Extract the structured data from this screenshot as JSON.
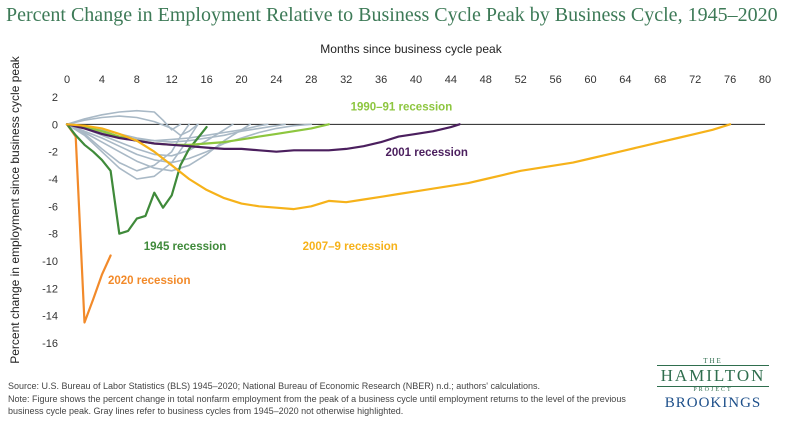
{
  "title": "Percent Change in Employment Relative to Business Cycle Peak by Business Cycle, 1945–2020",
  "source": "Source: U.S. Bureau of Labor Statistics (BLS) 1945–2020; National Bureau of Economic Research (NBER) n.d.; authors' calculations.",
  "note": "Note: Figure shows the percent change in total nonfarm employment from the peak of a business cycle until employment returns to the level of the previous business cycle peak. Gray lines refer to business cycles from 1945–2020 not otherwise highlighted.",
  "logo": {
    "the": "THE",
    "hamilton": "HAMILTON",
    "project": "PROJECT",
    "brookings": "BROOKINGS"
  },
  "chart_data": {
    "type": "line",
    "xlabel": "Months since business cycle peak",
    "ylabel": "Percent change in employment since business cycle peak",
    "xlim": [
      0,
      80
    ],
    "ylim": [
      -16,
      2
    ],
    "xticks": [
      0,
      4,
      8,
      12,
      16,
      20,
      24,
      28,
      32,
      36,
      40,
      44,
      48,
      52,
      56,
      60,
      64,
      68,
      72,
      76,
      80
    ],
    "yticks": [
      2,
      0,
      -2,
      -4,
      -6,
      -8,
      -10,
      -12,
      -14,
      -16
    ],
    "x_axis_position": "top",
    "zero_line": true,
    "series": [
      {
        "name": "2020 recession",
        "color": "#f28a2a",
        "highlight": true,
        "x": [
          0,
          1,
          2,
          3,
          4,
          5
        ],
        "y": [
          0,
          -0.9,
          -14.5,
          -12.8,
          -11.0,
          -9.6
        ]
      },
      {
        "name": "1945 recession",
        "color": "#3f8a3a",
        "highlight": true,
        "x": [
          0,
          1,
          2,
          3,
          4,
          5,
          6,
          7,
          8,
          9,
          10,
          11,
          12,
          13,
          14,
          15,
          16
        ],
        "y": [
          0,
          -0.8,
          -1.5,
          -2.0,
          -2.6,
          -3.4,
          -8.0,
          -7.8,
          -6.9,
          -6.7,
          -5.0,
          -6.1,
          -5.2,
          -3.0,
          -1.8,
          -1.0,
          -0.2
        ]
      },
      {
        "name": "1990–91 recession",
        "color": "#8dc63f",
        "highlight": true,
        "x": [
          0,
          2,
          4,
          6,
          8,
          10,
          12,
          14,
          16,
          18,
          20,
          22,
          24,
          26,
          28,
          30
        ],
        "y": [
          0,
          -0.2,
          -0.5,
          -0.9,
          -1.2,
          -1.4,
          -1.5,
          -1.5,
          -1.4,
          -1.3,
          -1.1,
          -0.9,
          -0.7,
          -0.5,
          -0.3,
          0
        ]
      },
      {
        "name": "2001 recession",
        "color": "#4b1f5e",
        "highlight": true,
        "x": [
          0,
          2,
          4,
          6,
          8,
          10,
          12,
          14,
          16,
          18,
          20,
          22,
          24,
          26,
          28,
          30,
          32,
          34,
          36,
          38,
          40,
          42,
          44,
          45
        ],
        "y": [
          0,
          -0.3,
          -0.7,
          -1.0,
          -1.2,
          -1.4,
          -1.5,
          -1.6,
          -1.7,
          -1.8,
          -1.8,
          -1.9,
          -2.0,
          -1.9,
          -1.9,
          -1.9,
          -1.8,
          -1.6,
          -1.3,
          -0.9,
          -0.7,
          -0.5,
          -0.2,
          0
        ]
      },
      {
        "name": "2007–9 recession",
        "color": "#f6b21a",
        "highlight": true,
        "x": [
          0,
          2,
          4,
          6,
          8,
          10,
          12,
          14,
          16,
          18,
          20,
          22,
          24,
          26,
          28,
          30,
          32,
          34,
          36,
          38,
          40,
          42,
          44,
          46,
          48,
          50,
          52,
          54,
          56,
          58,
          60,
          62,
          64,
          66,
          68,
          70,
          72,
          74,
          76
        ],
        "y": [
          0,
          -0.1,
          -0.3,
          -0.7,
          -1.2,
          -2.0,
          -3.0,
          -4.0,
          -4.8,
          -5.4,
          -5.8,
          -6.0,
          -6.1,
          -6.2,
          -6.0,
          -5.6,
          -5.7,
          -5.5,
          -5.3,
          -5.1,
          -4.9,
          -4.7,
          -4.5,
          -4.3,
          -4.0,
          -3.7,
          -3.4,
          -3.2,
          -3.0,
          -2.8,
          -2.5,
          -2.2,
          -1.9,
          -1.6,
          -1.3,
          -1.0,
          -0.7,
          -0.4,
          0
        ]
      },
      {
        "name": "",
        "color": "#a9b9c6",
        "x": [
          0,
          2,
          4,
          6,
          8,
          10,
          11,
          12,
          13
        ],
        "y": [
          0,
          0.4,
          0.7,
          0.9,
          1.0,
          0.9,
          0.3,
          -0.4,
          0
        ]
      },
      {
        "name": "",
        "color": "#a9b9c6",
        "x": [
          0,
          2,
          4,
          6,
          8,
          10,
          12,
          13,
          14,
          15
        ],
        "y": [
          0,
          0.3,
          0.5,
          0.6,
          0.5,
          0.2,
          -0.3,
          -0.8,
          -0.5,
          0
        ]
      },
      {
        "name": "",
        "color": "#a9b9c6",
        "x": [
          0,
          2,
          4,
          6,
          8,
          10,
          12,
          14,
          16,
          18,
          19
        ],
        "y": [
          0,
          -0.3,
          -0.8,
          -1.3,
          -1.8,
          -2.2,
          -2.3,
          -1.9,
          -1.2,
          -0.4,
          0
        ]
      },
      {
        "name": "",
        "color": "#a9b9c6",
        "x": [
          0,
          2,
          4,
          6,
          8,
          10,
          12,
          14,
          15
        ],
        "y": [
          0,
          -0.8,
          -2.0,
          -3.2,
          -4.0,
          -3.8,
          -2.8,
          -1.0,
          0
        ]
      },
      {
        "name": "",
        "color": "#a9b9c6",
        "x": [
          0,
          2,
          4,
          6,
          8,
          10,
          12,
          13,
          14
        ],
        "y": [
          0,
          -0.7,
          -1.8,
          -2.8,
          -3.4,
          -3.0,
          -2.0,
          -0.9,
          0
        ]
      },
      {
        "name": "",
        "color": "#a9b9c6",
        "x": [
          0,
          2,
          4,
          6,
          8,
          10,
          12,
          14,
          16,
          18,
          20,
          22,
          24,
          26,
          28
        ],
        "y": [
          0,
          -0.5,
          -1.0,
          -1.6,
          -2.2,
          -2.6,
          -2.8,
          -2.5,
          -2.0,
          -1.4,
          -1.0,
          -0.6,
          -0.3,
          -0.1,
          0
        ]
      },
      {
        "name": "",
        "color": "#a9b9c6",
        "x": [
          0,
          2,
          4,
          6,
          8,
          10,
          12,
          14,
          16,
          18,
          20,
          22,
          24,
          25
        ],
        "y": [
          0,
          -0.2,
          -0.4,
          -0.7,
          -1.0,
          -1.2,
          -1.3,
          -1.2,
          -1.0,
          -0.8,
          -0.5,
          -0.3,
          -0.1,
          0
        ]
      },
      {
        "name": "",
        "color": "#a9b9c6",
        "x": [
          0,
          2,
          4,
          6,
          8,
          10,
          12,
          14,
          16,
          18,
          20,
          21
        ],
        "y": [
          0,
          -0.6,
          -1.3,
          -2.0,
          -2.7,
          -3.2,
          -3.4,
          -3.0,
          -2.2,
          -1.2,
          -0.4,
          0
        ]
      },
      {
        "name": "",
        "color": "#a9b9c6",
        "x": [
          0,
          2,
          4,
          6,
          8,
          10,
          12,
          14,
          16,
          18,
          20,
          22,
          23
        ],
        "y": [
          0,
          -0.3,
          -0.6,
          -0.9,
          -1.1,
          -1.2,
          -1.1,
          -1.0,
          -0.8,
          -0.6,
          -0.4,
          -0.1,
          0
        ]
      }
    ],
    "annotations": [
      {
        "text": "1990–91 recession",
        "color": "#8dc63f",
        "x": 32.5,
        "y": 1.0
      },
      {
        "text": "2001 recession",
        "color": "#4b1f5e",
        "x": 36.5,
        "y": -2.3
      },
      {
        "text": "1945 recession",
        "color": "#3f8a3a",
        "x": 8.8,
        "y": -9.2
      },
      {
        "text": "2007–9 recession",
        "color": "#f6b21a",
        "x": 27.0,
        "y": -9.2
      },
      {
        "text": "2020 recession",
        "color": "#f28a2a",
        "x": 4.7,
        "y": -11.7
      }
    ]
  }
}
